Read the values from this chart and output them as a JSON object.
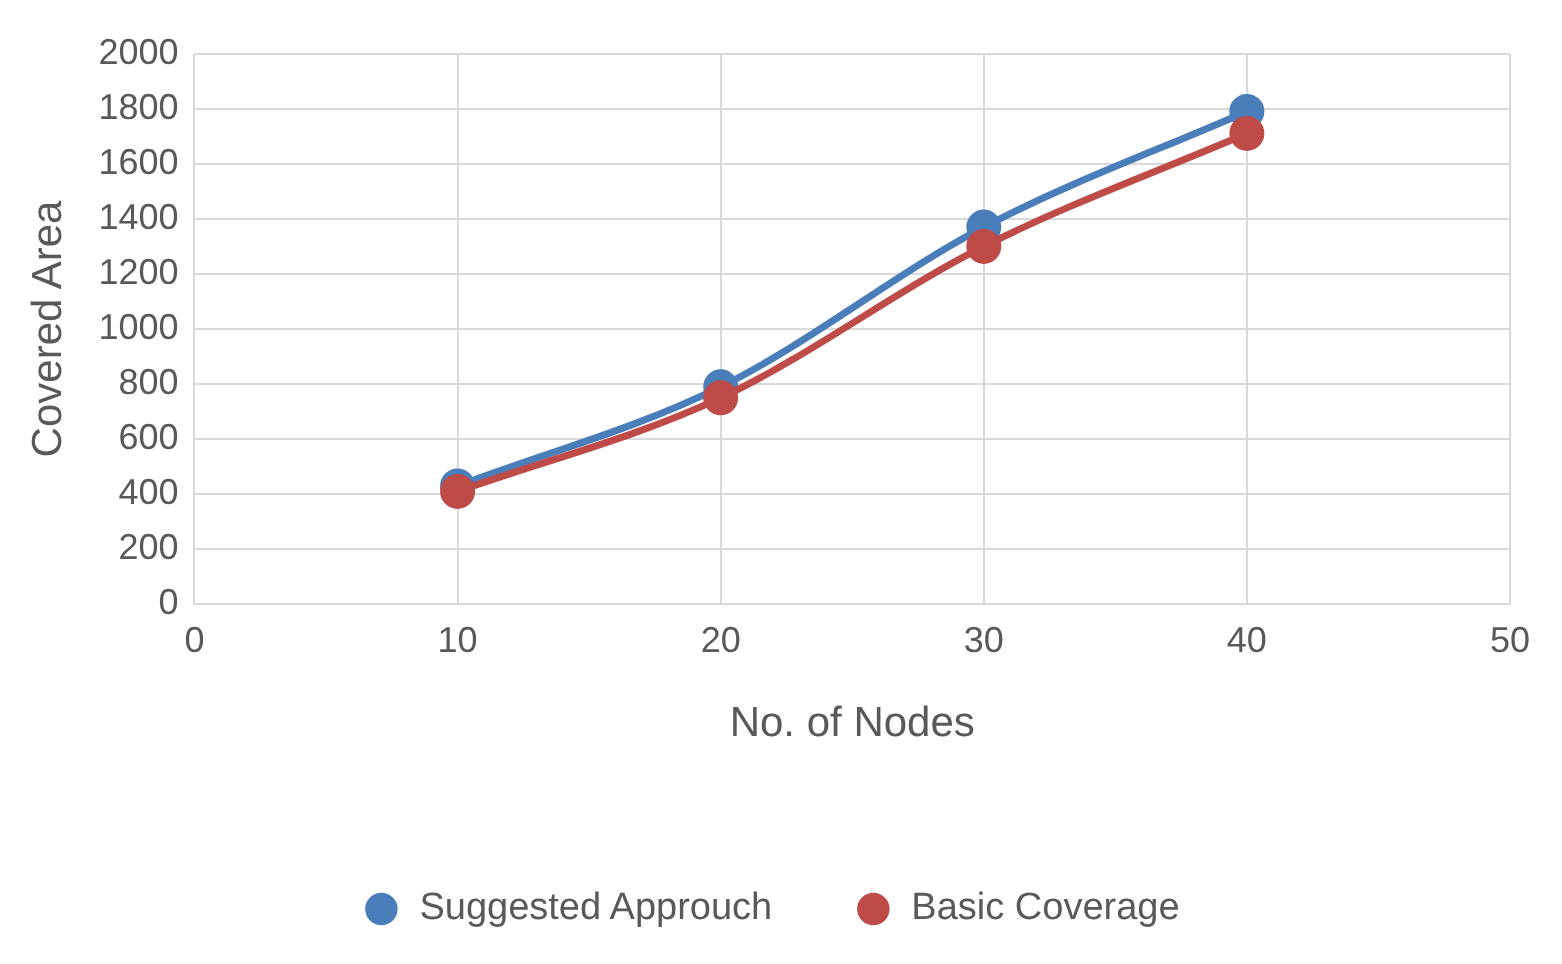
{
  "chart_data": {
    "type": "line",
    "xlabel": "No. of Nodes",
    "ylabel": "Covered Area",
    "xlim": [
      0,
      50
    ],
    "xticks": [
      0,
      10,
      20,
      30,
      40,
      50
    ],
    "ylim": [
      0,
      2000
    ],
    "yticks": [
      0,
      200,
      400,
      600,
      800,
      1000,
      1200,
      1400,
      1600,
      1800,
      2000
    ],
    "x": [
      10,
      20,
      30,
      40
    ],
    "series": [
      {
        "name": "Suggested Approuch",
        "color": "#4a7ebb",
        "values": [
          430,
          790,
          1370,
          1790
        ]
      },
      {
        "name": "Basic Coverage",
        "color": "#be4b48",
        "values": [
          410,
          750,
          1300,
          1710
        ]
      }
    ],
    "grid": true,
    "legend": "bottom",
    "marker": "circle",
    "line_style": "solid"
  }
}
